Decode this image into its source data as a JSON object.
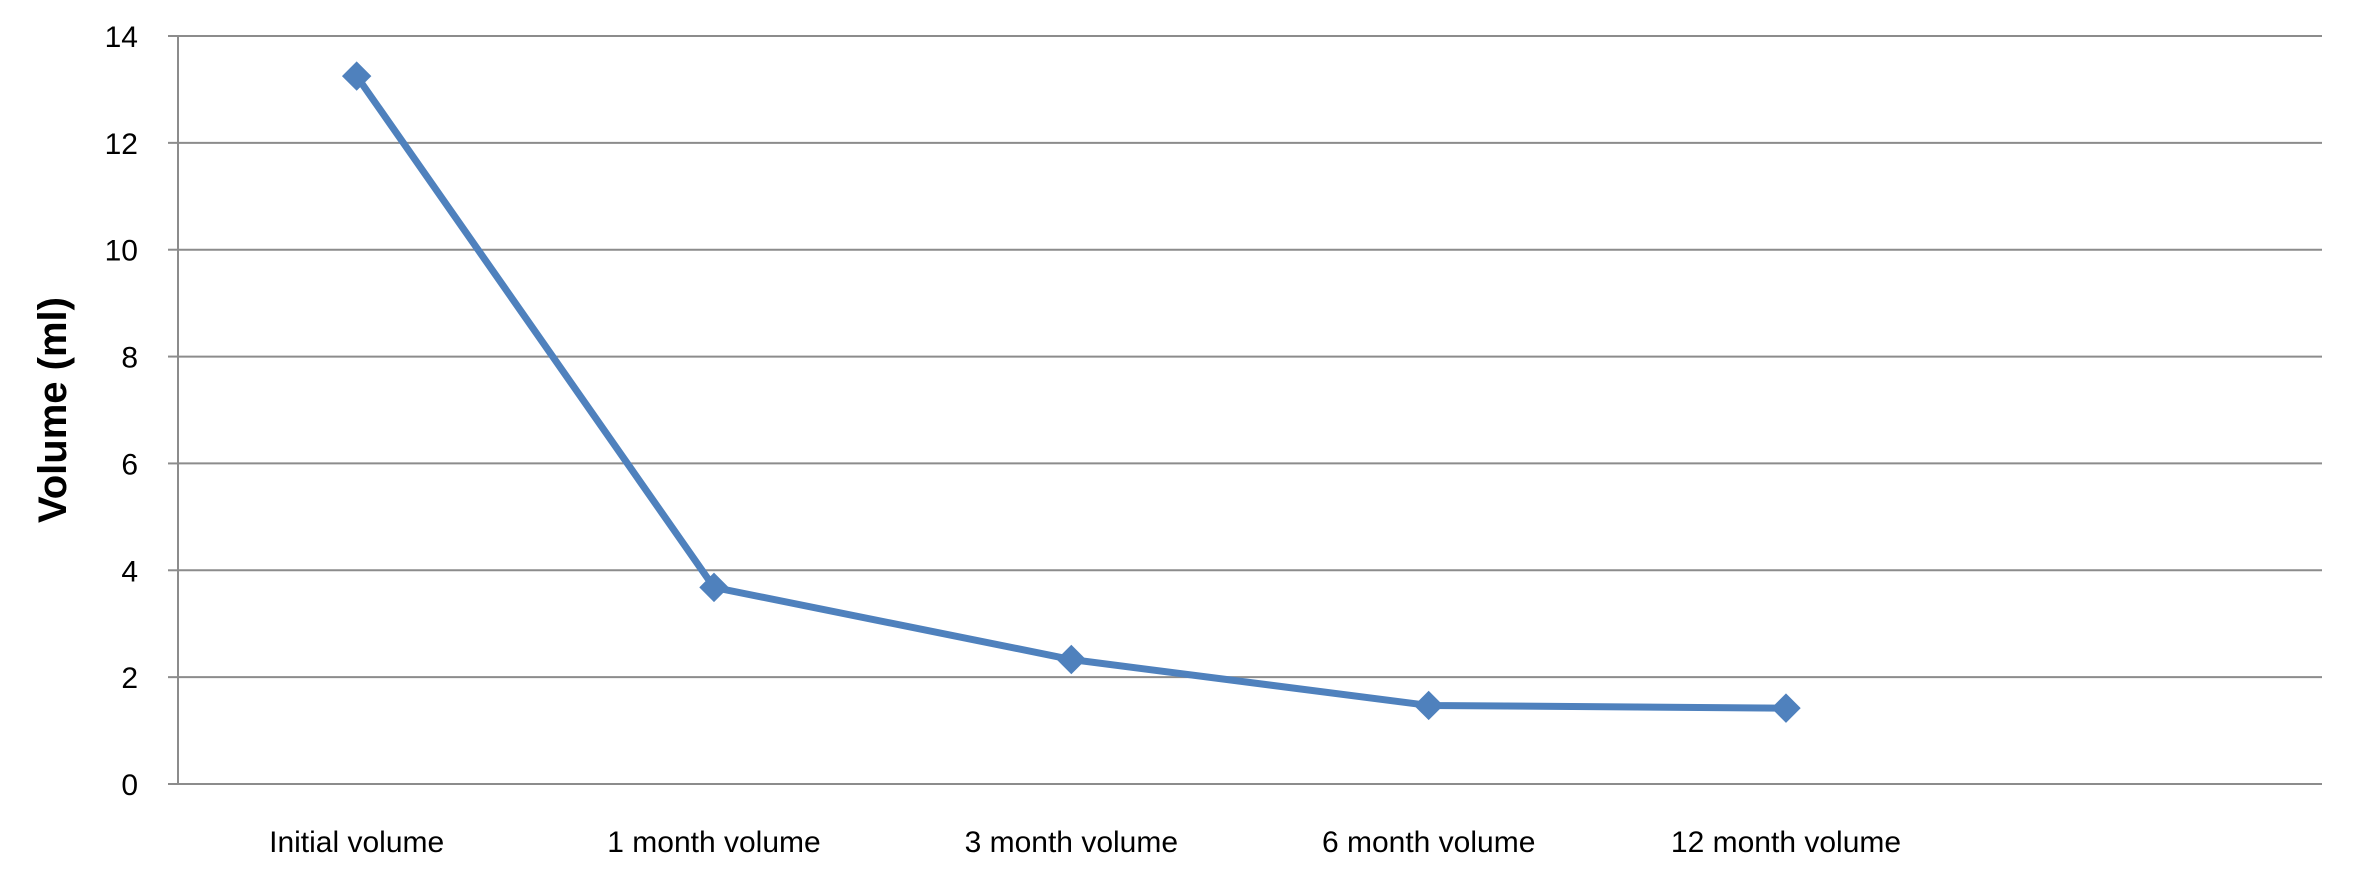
{
  "chart_data": {
    "type": "line",
    "title": "",
    "xlabel": "",
    "ylabel": "Volume (ml)",
    "categories": [
      "Initial volume",
      "1 month volume",
      "3 month volume",
      "6 month volume",
      "12 month volume"
    ],
    "series": [
      {
        "values": [
          13.25,
          3.68,
          2.33,
          1.47,
          1.42
        ],
        "color": "#4F81BD",
        "marker": "diamond"
      }
    ],
    "ylim": [
      0,
      14
    ],
    "yticks": [
      "0",
      "2",
      "4",
      "6",
      "8",
      "10",
      "12",
      "14"
    ],
    "grid": true,
    "legend": "none"
  }
}
